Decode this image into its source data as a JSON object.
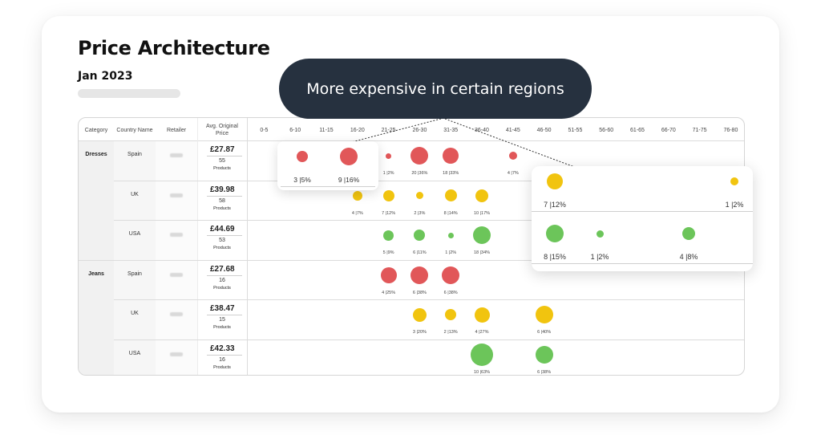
{
  "header": {
    "title": "Price Architecture",
    "date": "Jan 2023"
  },
  "callout": {
    "text": "More expensive in certain regions"
  },
  "columns": {
    "category": "Category",
    "country": "Country Name",
    "retailer": "Retailer",
    "price_line1": "Avg. Original",
    "price_line2": "Price"
  },
  "ranges": [
    "0-5",
    "6-10",
    "11-15",
    "16-20",
    "21-25",
    "26-30",
    "31-35",
    "36-40",
    "41-45",
    "46-50",
    "51-55",
    "56-60",
    "61-65",
    "66-70",
    "71-75",
    "76-80"
  ],
  "colors": {
    "red": "#e15759",
    "yellow": "#f1c40f",
    "green": "#6cc55a"
  },
  "rows": [
    {
      "category": "Dresses",
      "country": "Spain",
      "price": "£27.87",
      "count": "55",
      "unit": "Products",
      "color": "red",
      "bubbles": [
        {
          "col": 4,
          "size": 7,
          "label": "1 |2%"
        },
        {
          "col": 5,
          "size": 22,
          "label": "20 |36%"
        },
        {
          "col": 6,
          "size": 20,
          "label": "18 |33%"
        },
        {
          "col": 8,
          "size": 10,
          "label": "4 |7%"
        }
      ]
    },
    {
      "category": "",
      "country": "UK",
      "price": "£39.98",
      "count": "58",
      "unit": "Products",
      "color": "yellow",
      "bubbles": [
        {
          "col": 3,
          "size": 12,
          "label": "4 |7%"
        },
        {
          "col": 4,
          "size": 14,
          "label": "7 |12%"
        },
        {
          "col": 5,
          "size": 9,
          "label": "2 |3%"
        },
        {
          "col": 6,
          "size": 15,
          "label": "8 |14%"
        },
        {
          "col": 7,
          "size": 16,
          "label": "10 |17%"
        }
      ]
    },
    {
      "category": "",
      "country": "USA",
      "price": "£44.69",
      "count": "53",
      "unit": "Products",
      "color": "green",
      "bubbles": [
        {
          "col": 4,
          "size": 13,
          "label": "5 |9%"
        },
        {
          "col": 5,
          "size": 14,
          "label": "6 |11%"
        },
        {
          "col": 6,
          "size": 7,
          "label": "1 |2%"
        },
        {
          "col": 7,
          "size": 22,
          "label": "18 |34%"
        }
      ]
    },
    {
      "category": "Jeans",
      "country": "Spain",
      "price": "£27.68",
      "count": "16",
      "unit": "Products",
      "color": "red",
      "bubbles": [
        {
          "col": 4,
          "size": 20,
          "label": "4 |25%"
        },
        {
          "col": 5,
          "size": 22,
          "label": "6 |38%"
        },
        {
          "col": 6,
          "size": 22,
          "label": "6 |38%"
        }
      ]
    },
    {
      "category": "",
      "country": "UK",
      "price": "£38.47",
      "count": "15",
      "unit": "Products",
      "color": "yellow",
      "bubbles": [
        {
          "col": 5,
          "size": 17,
          "label": "3 |20%"
        },
        {
          "col": 6,
          "size": 14,
          "label": "2 |13%"
        },
        {
          "col": 7,
          "size": 19,
          "label": "4 |27%"
        },
        {
          "col": 9,
          "size": 22,
          "label": "6 |40%"
        }
      ]
    },
    {
      "category": "",
      "country": "USA",
      "price": "£42.33",
      "count": "16",
      "unit": "Products",
      "color": "green",
      "bubbles": [
        {
          "col": 7,
          "size": 28,
          "label": "10 |63%"
        },
        {
          "col": 9,
          "size": 22,
          "label": "6 |38%"
        }
      ]
    }
  ],
  "zoom_left": {
    "bubbles": [
      {
        "size": 14,
        "label": "3 |5%",
        "color": "red"
      },
      {
        "size": 22,
        "label": "9 |16%",
        "color": "red"
      }
    ]
  },
  "zoom_right": {
    "rows": [
      {
        "color": "yellow",
        "bubbles": [
          {
            "slot": 0,
            "size": 20,
            "label": "7 |12%"
          },
          {
            "slot": 3,
            "size": 10,
            "label": "1 |2%"
          }
        ]
      },
      {
        "color": "green",
        "bubbles": [
          {
            "slot": 0,
            "size": 22,
            "label": "8 |15%"
          },
          {
            "slot": 1,
            "size": 9,
            "label": "1 |2%"
          },
          {
            "slot": 2,
            "size": 16,
            "label": "4 |8%"
          }
        ]
      }
    ]
  }
}
